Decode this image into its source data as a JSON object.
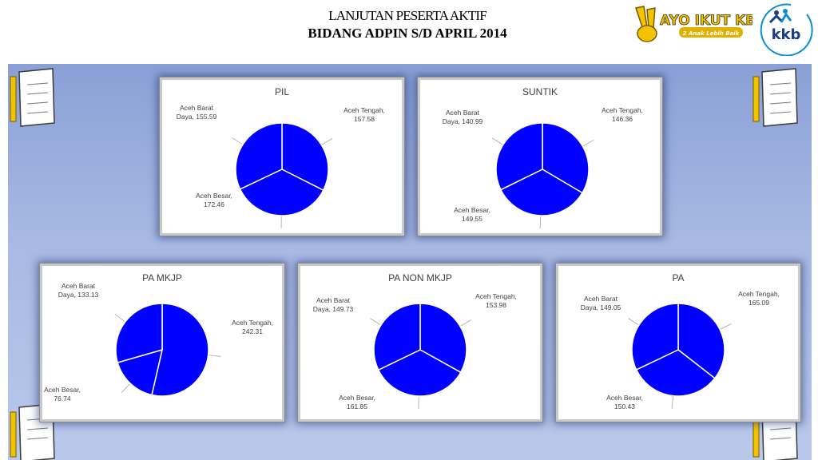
{
  "header": {
    "title_line1": "LANJUTAN PESERTA  AKTIF",
    "title_line2": "BIDANG ADPIN S/D  APRIL 2014",
    "logo_ayo_text": "AYO IKUT KB",
    "logo_ayo_tagline": "2 Anak Lebih Baik",
    "logo_kkb_text": "kkb"
  },
  "colors": {
    "slice": "#0000ff",
    "slice_edge": "#ffffff",
    "stage": "#9eb2e0"
  },
  "chart_data": [
    {
      "type": "pie",
      "title": "PIL",
      "labels": [
        "Aceh Tengah",
        "Aceh Besar",
        "Aceh Barat Daya"
      ],
      "values": [
        157.58,
        172.46,
        155.59
      ],
      "display": [
        "Aceh Tengah,\n157.58",
        "Aceh Besar,\n172.46",
        "Aceh Barat\nDaya, 155.59"
      ]
    },
    {
      "type": "pie",
      "title": "SUNTIK",
      "labels": [
        "Aceh Tengah",
        "Aceh Besar",
        "Aceh Barat Daya"
      ],
      "values": [
        146.36,
        149.55,
        140.99
      ],
      "display": [
        "Aceh Tengah,\n146.36",
        "Aceh Besar,\n149.55",
        "Aceh Barat\nDaya, 140.99"
      ]
    },
    {
      "type": "pie",
      "title": "PA  MKJP",
      "labels": [
        "Aceh Tengah",
        "Aceh Besar",
        "Aceh Barat Daya"
      ],
      "values": [
        242.31,
        76.74,
        133.13
      ],
      "display": [
        "Aceh Tengah,\n242.31",
        "Aceh Besar,\n76.74",
        "Aceh Barat\nDaya, 133.13"
      ]
    },
    {
      "type": "pie",
      "title": "PA NON MKJP",
      "labels": [
        "Aceh Tengah",
        "Aceh Besar",
        "Aceh Barat Daya"
      ],
      "values": [
        153.98,
        161.85,
        149.73
      ],
      "display": [
        "Aceh Tengah,\n153.98",
        "Aceh Besar,\n161.85",
        "Aceh Barat\nDaya, 149.73"
      ]
    },
    {
      "type": "pie",
      "title": "PA",
      "labels": [
        "Aceh Tengah",
        "Aceh Besar",
        "Aceh Barat Daya"
      ],
      "values": [
        165.09,
        150.43,
        149.05
      ],
      "display": [
        "Aceh Tengah,\n165.09",
        "Aceh Besar,\n150.43",
        "Aceh Barat\nDaya, 149.05"
      ]
    }
  ]
}
